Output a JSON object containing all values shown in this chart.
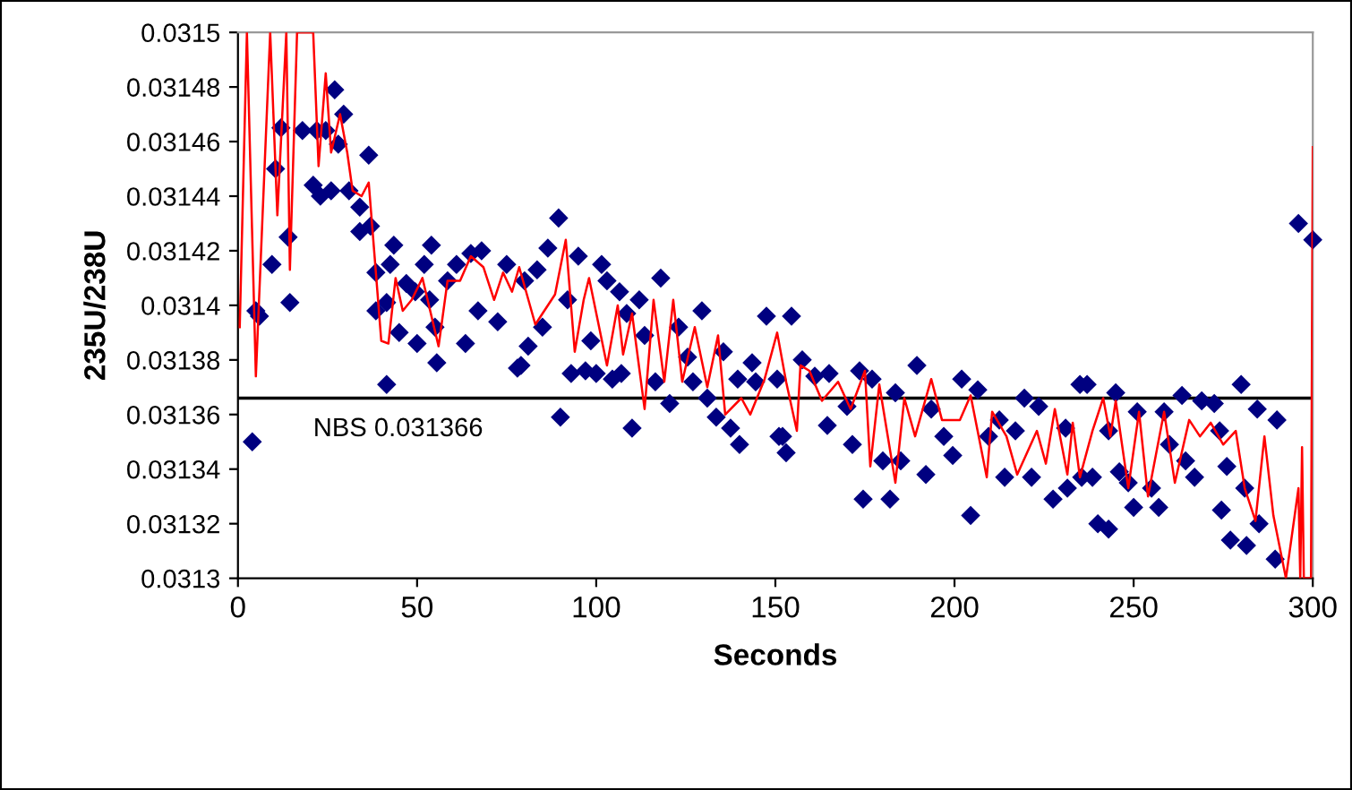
{
  "chart_data": {
    "type": "scatter",
    "xlabel": "Seconds",
    "ylabel": "235U/238U",
    "xlim": [
      0,
      300
    ],
    "xticks": [
      0,
      50,
      100,
      150,
      200,
      250,
      300
    ],
    "ylim": [
      0.0313,
      0.0315
    ],
    "yticks": [
      0.0313,
      0.03132,
      0.03134,
      0.03136,
      0.03138,
      0.0314,
      0.03142,
      0.03144,
      0.03146,
      0.03148,
      0.0315
    ],
    "grid": false,
    "legend": false,
    "ref_lines": [
      {
        "axis": "y",
        "value": 0.031366,
        "label": "NBS 0.031366",
        "color": "#000000",
        "line_style": "solid"
      }
    ],
    "series": [
      {
        "color": "#000080",
        "marker": "diamond",
        "x": [
          4,
          5,
          6,
          9.5,
          10.5,
          12,
          14,
          14.5,
          18,
          21,
          22,
          23,
          24.5,
          26,
          27,
          28,
          29.5,
          31,
          34,
          34,
          36.5,
          37,
          38.5,
          38.5,
          41.5,
          41.5,
          42.5,
          43.5,
          45,
          47,
          49.5,
          50,
          52,
          53.5,
          54,
          55,
          55.5,
          58.5,
          61,
          63.5,
          65,
          67,
          68,
          72.5,
          75,
          78,
          79,
          80,
          81,
          83.5,
          85,
          86.5,
          89.5,
          90,
          92,
          93,
          95,
          97,
          98.5,
          100,
          101.5,
          103,
          104.5,
          106.5,
          107,
          108.5,
          110,
          112,
          113.5,
          116.5,
          118,
          120.5,
          123,
          125.5,
          127,
          129.5,
          131,
          133.5,
          135.5,
          137.5,
          139.5,
          140,
          143.5,
          144.5,
          147.5,
          150.5,
          151,
          152,
          153,
          154.5,
          157.5,
          161,
          164.5,
          165,
          170,
          171.5,
          173.5,
          174.5,
          177,
          180,
          182,
          183.5,
          185,
          189.5,
          192,
          193.5,
          197,
          199.5,
          202,
          204.5,
          206.5,
          209.5,
          212.5,
          214,
          217,
          219.5,
          221.5,
          223.5,
          227.5,
          231,
          231.5,
          235,
          235.5,
          237,
          238.5,
          240,
          243,
          243,
          245,
          246,
          248.5,
          250,
          251,
          255,
          257,
          258.5,
          260,
          263.5,
          264.5,
          267,
          269,
          272.5,
          274,
          274.5,
          276,
          277,
          280,
          281,
          281.5,
          284.5,
          285,
          289.5,
          290,
          296,
          300
        ],
        "values": [
          0.03135,
          0.031398,
          0.031396,
          0.031415,
          0.03145,
          0.031465,
          0.031425,
          0.031401,
          0.031464,
          0.031444,
          0.031464,
          0.03144,
          0.031464,
          0.031442,
          0.031479,
          0.031459,
          0.03147,
          0.031442,
          0.031427,
          0.031436,
          0.031455,
          0.031429,
          0.031412,
          0.031398,
          0.031371,
          0.031401,
          0.031415,
          0.031422,
          0.03139,
          0.031408,
          0.031405,
          0.031386,
          0.031415,
          0.031402,
          0.031422,
          0.031392,
          0.031379,
          0.031409,
          0.031415,
          0.031386,
          0.031419,
          0.031398,
          0.03142,
          0.031394,
          0.031415,
          0.031377,
          0.031378,
          0.031409,
          0.031385,
          0.031413,
          0.031392,
          0.031421,
          0.031432,
          0.031359,
          0.031402,
          0.031375,
          0.031418,
          0.031376,
          0.031387,
          0.031375,
          0.031415,
          0.031409,
          0.031373,
          0.031405,
          0.031375,
          0.031397,
          0.031355,
          0.031402,
          0.031389,
          0.031372,
          0.03141,
          0.031364,
          0.031392,
          0.031381,
          0.031372,
          0.031398,
          0.031366,
          0.031359,
          0.031383,
          0.031355,
          0.031373,
          0.031349,
          0.031379,
          0.031372,
          0.031396,
          0.031373,
          0.031352,
          0.031352,
          0.031346,
          0.031396,
          0.03138,
          0.031374,
          0.031356,
          0.031375,
          0.031363,
          0.031349,
          0.031376,
          0.031329,
          0.031373,
          0.031343,
          0.031329,
          0.031368,
          0.031343,
          0.031378,
          0.031338,
          0.031362,
          0.031352,
          0.031345,
          0.031373,
          0.031323,
          0.031369,
          0.031352,
          0.031358,
          0.031337,
          0.031354,
          0.031366,
          0.031337,
          0.031363,
          0.031329,
          0.031355,
          0.031333,
          0.031371,
          0.031337,
          0.031371,
          0.031337,
          0.03132,
          0.031318,
          0.031354,
          0.031368,
          0.031339,
          0.031335,
          0.031326,
          0.031361,
          0.031333,
          0.031326,
          0.031361,
          0.031349,
          0.031367,
          0.031343,
          0.031337,
          0.031365,
          0.031364,
          0.031354,
          0.031325,
          0.031341,
          0.031314,
          0.031371,
          0.031333,
          0.031312,
          0.031362,
          0.03132,
          0.031307,
          0.031358,
          0.03143,
          0.031424
        ]
      },
      {
        "type": "line",
        "color": "#ff0000",
        "marker": "none",
        "line_style": "solid",
        "x": [
          0.5,
          2.5,
          5,
          9,
          11,
          13.5,
          14.5,
          16.5,
          21,
          22.5,
          24.5,
          26,
          28.5,
          30.5,
          32,
          34.5,
          36.5,
          38.5,
          40,
          42,
          44,
          46,
          48.5,
          51.5,
          56,
          58.5,
          62,
          65,
          68.5,
          71.5,
          74,
          76.5,
          78.5,
          83,
          88.5,
          91.5,
          94,
          96.5,
          98,
          103,
          106,
          107.5,
          110,
          113.5,
          116,
          119,
          121.5,
          124,
          127.5,
          131,
          134,
          136,
          140.5,
          143,
          147,
          150.5,
          153,
          156,
          157,
          159.5,
          163,
          167.5,
          171,
          175,
          176.5,
          179,
          183.5,
          186,
          189,
          193.5,
          196.5,
          201.5,
          204.5,
          209,
          210.5,
          214.5,
          217.5,
          223,
          225.5,
          228,
          231.5,
          233,
          235,
          238.5,
          241.5,
          243.5,
          245,
          248.5,
          251.5,
          254,
          258.5,
          261.5,
          265.5,
          268.5,
          271.5,
          275,
          278.5,
          281,
          284,
          286.5,
          289,
          292.5,
          296,
          296.5,
          297,
          297.5,
          299.5,
          300
        ],
        "values": [
          0.031392,
          0.0315,
          0.031374,
          0.0315,
          0.031433,
          0.0315,
          0.031413,
          0.0315,
          0.0315,
          0.031451,
          0.031485,
          0.031456,
          0.03147,
          0.031456,
          0.031442,
          0.03144,
          0.031445,
          0.031412,
          0.031387,
          0.031386,
          0.03141,
          0.031398,
          0.031402,
          0.03141,
          0.031385,
          0.031409,
          0.031409,
          0.031418,
          0.031414,
          0.031402,
          0.031412,
          0.031405,
          0.031414,
          0.031393,
          0.031404,
          0.031424,
          0.031383,
          0.031402,
          0.03141,
          0.031378,
          0.0314,
          0.031382,
          0.031397,
          0.031362,
          0.031402,
          0.031372,
          0.031402,
          0.031372,
          0.031392,
          0.03137,
          0.031389,
          0.03136,
          0.031366,
          0.03136,
          0.031373,
          0.03139,
          0.031372,
          0.031354,
          0.031378,
          0.031376,
          0.031365,
          0.031372,
          0.031362,
          0.031376,
          0.031341,
          0.031371,
          0.031335,
          0.031366,
          0.031352,
          0.031373,
          0.031358,
          0.031358,
          0.031367,
          0.031337,
          0.031361,
          0.031352,
          0.031338,
          0.031354,
          0.031342,
          0.031362,
          0.031338,
          0.031357,
          0.031337,
          0.031354,
          0.031366,
          0.031352,
          0.031365,
          0.031333,
          0.031361,
          0.03133,
          0.031361,
          0.031335,
          0.031358,
          0.031352,
          0.031357,
          0.031349,
          0.031354,
          0.031333,
          0.031321,
          0.031352,
          0.031323,
          0.0313,
          0.031333,
          0.0313,
          0.031348,
          0.0313,
          0.0313,
          0.031458
        ]
      }
    ]
  }
}
